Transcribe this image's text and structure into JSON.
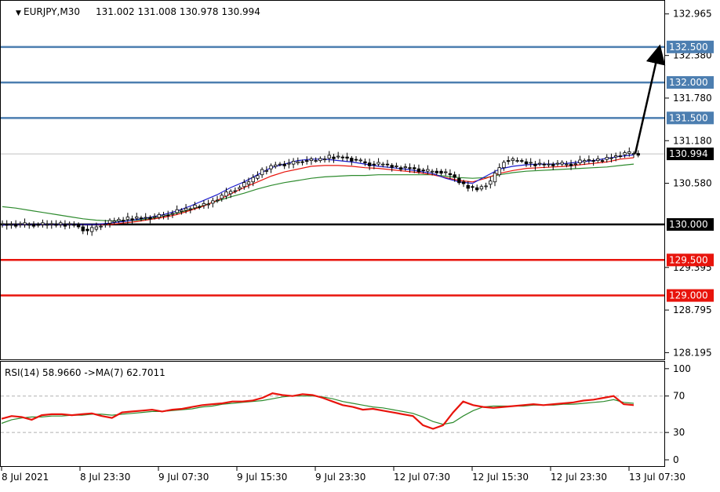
{
  "main": {
    "header": {
      "symbol_label": "EURJPY,M30",
      "ohlc": "131.002 131.008 130.978 130.994",
      "marker": "▼"
    },
    "y_ticks": [
      "132.965",
      "132.380",
      "131.780",
      "131.180",
      "130.580",
      "129.395",
      "128.795",
      "128.195"
    ],
    "current_price": "130.994"
  },
  "indicator": {
    "header": "RSI(14) 58.9660  ->MA(7) 62.7011",
    "y_ticks": [
      "100",
      "70",
      "30",
      "0"
    ]
  },
  "x_ticks": [
    "8 Jul 2021",
    "8 Jul 23:30",
    "9 Jul 07:30",
    "9 Jul 15:30",
    "9 Jul 23:30",
    "12 Jul 07:30",
    "12 Jul 15:30",
    "12 Jul 23:30",
    "13 Jul 07:30"
  ],
  "colors": {
    "resistance": "#4c7eb0",
    "support": "#e8140c",
    "pivot": "#000000",
    "ma_fast": "#1a1acc",
    "ma_mid": "#e8140c",
    "ma_slow": "#2e8b2e",
    "rsi": "#e8140c",
    "rsi_ma": "#2e8b2e",
    "current_line": "#c0c0c0"
  },
  "chart_data": [
    {
      "type": "candlestick",
      "symbol": "EURJPY",
      "timeframe": "M30",
      "ylim": [
        128.1,
        133.15
      ],
      "levels": [
        {
          "price": 132.5,
          "label": "132.500",
          "role": "resistance"
        },
        {
          "price": 132.0,
          "label": "132.000",
          "role": "resistance"
        },
        {
          "price": 131.5,
          "label": "131.500",
          "role": "resistance"
        },
        {
          "price": 130.0,
          "label": "130.000",
          "role": "pivot"
        },
        {
          "price": 129.5,
          "label": "129.500",
          "role": "support"
        },
        {
          "price": 129.0,
          "label": "129.000",
          "role": "support"
        }
      ],
      "price_path": [
        130.0,
        130.0,
        130.0,
        130.0,
        130.0,
        130.0,
        129.9,
        130.0,
        130.05,
        130.08,
        130.1,
        130.1,
        130.15,
        130.2,
        130.25,
        130.3,
        130.4,
        130.5,
        130.6,
        130.75,
        130.85,
        130.85,
        130.9,
        130.9,
        130.95,
        130.95,
        130.9,
        130.85,
        130.85,
        130.8,
        130.8,
        130.75,
        130.75,
        130.7,
        130.55,
        130.5,
        130.6,
        130.9,
        130.9,
        130.85,
        130.85,
        130.85,
        130.85,
        130.9,
        130.9,
        130.95,
        131.0,
        131.0
      ],
      "ma_fast": [
        129.99,
        130.0,
        130.0,
        130.0,
        130.0,
        130.0,
        130.0,
        130.0,
        130.02,
        130.04,
        130.07,
        130.1,
        130.14,
        130.19,
        130.26,
        130.34,
        130.42,
        130.52,
        130.6,
        130.7,
        130.8,
        130.85,
        130.9,
        130.92,
        130.92,
        130.9,
        130.88,
        130.85,
        130.82,
        130.8,
        130.78,
        130.75,
        130.72,
        130.65,
        130.6,
        130.58,
        130.68,
        130.78,
        130.82,
        130.84,
        130.85,
        130.85,
        130.86,
        130.88,
        130.9,
        130.93,
        130.96,
        130.98
      ],
      "ma_mid": [
        129.99,
        130.0,
        130.0,
        130.0,
        130.0,
        130.0,
        130.0,
        130.0,
        130.0,
        130.02,
        130.04,
        130.07,
        130.1,
        130.14,
        130.2,
        130.26,
        130.34,
        130.43,
        130.52,
        130.6,
        130.68,
        130.74,
        130.78,
        130.82,
        130.83,
        130.83,
        130.82,
        130.8,
        130.79,
        130.77,
        130.75,
        130.73,
        130.7,
        130.66,
        130.62,
        130.6,
        130.65,
        130.72,
        130.76,
        130.79,
        130.8,
        130.81,
        130.82,
        130.84,
        130.86,
        130.88,
        130.92,
        130.94
      ],
      "ma_slow": [
        130.25,
        130.23,
        130.2,
        130.17,
        130.14,
        130.11,
        130.08,
        130.06,
        130.05,
        130.05,
        130.06,
        130.08,
        130.12,
        130.16,
        130.21,
        130.27,
        130.33,
        130.39,
        130.44,
        130.5,
        130.55,
        130.59,
        130.62,
        130.65,
        130.67,
        130.68,
        130.69,
        130.69,
        130.7,
        130.7,
        130.7,
        130.7,
        130.7,
        130.68,
        130.66,
        130.65,
        130.66,
        130.7,
        130.73,
        130.75,
        130.76,
        130.77,
        130.78,
        130.79,
        130.8,
        130.81,
        130.83,
        130.85
      ],
      "projection": {
        "from": 131.0,
        "to": 132.5
      }
    },
    {
      "type": "line",
      "name": "RSI(14)",
      "ylim": [
        0,
        100
      ],
      "levels": [
        70,
        30
      ],
      "rsi": [
        45,
        48,
        47,
        44,
        49,
        50,
        50,
        49,
        50,
        51,
        48,
        46,
        52,
        53,
        54,
        55,
        53,
        55,
        56,
        58,
        60,
        61,
        62,
        64,
        64,
        65,
        68,
        73,
        71,
        70,
        72,
        71,
        68,
        64,
        60,
        58,
        55,
        56,
        54,
        52,
        50,
        48,
        38,
        34,
        38,
        52,
        64,
        60,
        58,
        57,
        58,
        59,
        60,
        61,
        60,
        61,
        62,
        63,
        65,
        66,
        68,
        70,
        61,
        60
      ],
      "rsi_ma": [
        40,
        44,
        46,
        47,
        47,
        48,
        48,
        49,
        49,
        50,
        50,
        49,
        50,
        51,
        52,
        53,
        53,
        54,
        55,
        56,
        58,
        59,
        61,
        62,
        63,
        64,
        65,
        67,
        69,
        70,
        70,
        70,
        69,
        67,
        64,
        62,
        60,
        58,
        57,
        55,
        53,
        51,
        47,
        42,
        39,
        41,
        48,
        54,
        58,
        59,
        59,
        59,
        59,
        60,
        60,
        60,
        61,
        61,
        62,
        63,
        64,
        66,
        63,
        62
      ]
    }
  ]
}
